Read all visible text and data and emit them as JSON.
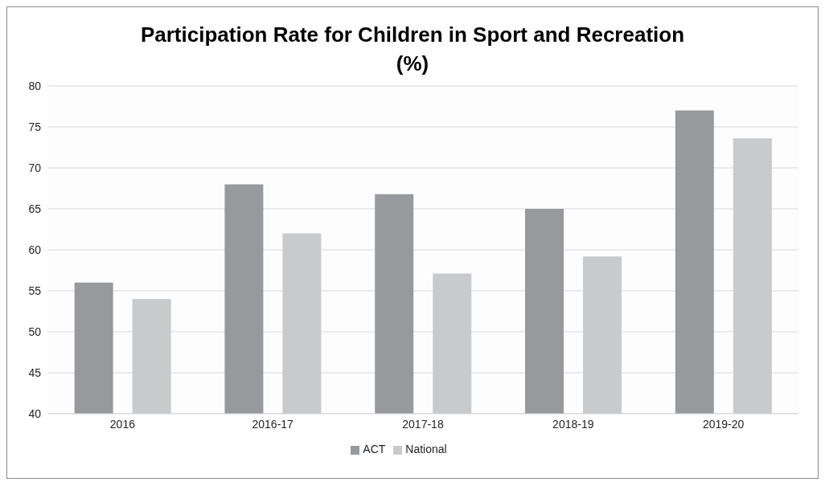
{
  "chart_data": {
    "type": "bar",
    "title": "Participation Rate for Children in Sport and Recreation\n(%)",
    "categories": [
      "2016",
      "2016-17",
      "2017-18",
      "2018-19",
      "2019-20"
    ],
    "series": [
      {
        "name": "ACT",
        "color": "#98999d",
        "values": [
          56,
          68,
          66.8,
          65,
          77
        ]
      },
      {
        "name": "National",
        "color": "#c9cacc",
        "values": [
          54,
          62,
          57.1,
          59.2,
          73.6
        ]
      }
    ],
    "ylim": [
      40,
      80
    ],
    "yticks": [
      40,
      45,
      50,
      55,
      60,
      65,
      70,
      75,
      80
    ],
    "grid": "y",
    "legend": "bottom"
  }
}
